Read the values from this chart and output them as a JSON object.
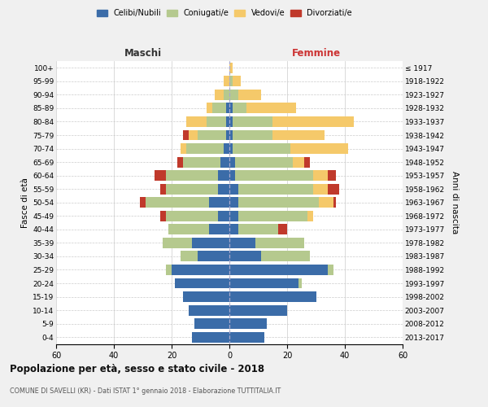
{
  "age_groups": [
    "0-4",
    "5-9",
    "10-14",
    "15-19",
    "20-24",
    "25-29",
    "30-34",
    "35-39",
    "40-44",
    "45-49",
    "50-54",
    "55-59",
    "60-64",
    "65-69",
    "70-74",
    "75-79",
    "80-84",
    "85-89",
    "90-94",
    "95-99",
    "100+"
  ],
  "birth_years": [
    "2013-2017",
    "2008-2012",
    "2003-2007",
    "1998-2002",
    "1993-1997",
    "1988-1992",
    "1983-1987",
    "1978-1982",
    "1973-1977",
    "1968-1972",
    "1963-1967",
    "1958-1962",
    "1953-1957",
    "1948-1952",
    "1943-1947",
    "1938-1942",
    "1933-1937",
    "1928-1932",
    "1923-1927",
    "1918-1922",
    "≤ 1917"
  ],
  "colors": {
    "celibe": "#3b6ca8",
    "coniugato": "#b5c98e",
    "vedovo": "#f5c96a",
    "divorziato": "#c0392b"
  },
  "males": {
    "celibe": [
      13,
      12,
      14,
      16,
      19,
      20,
      11,
      13,
      7,
      4,
      7,
      4,
      4,
      3,
      2,
      1,
      1,
      1,
      0,
      0,
      0
    ],
    "coniugato": [
      0,
      0,
      0,
      0,
      0,
      2,
      6,
      10,
      14,
      18,
      22,
      18,
      18,
      13,
      13,
      10,
      7,
      5,
      2,
      0,
      0
    ],
    "vedovo": [
      0,
      0,
      0,
      0,
      0,
      0,
      0,
      0,
      0,
      0,
      0,
      0,
      0,
      0,
      2,
      3,
      7,
      2,
      3,
      2,
      0
    ],
    "divorziato": [
      0,
      0,
      0,
      0,
      0,
      0,
      0,
      0,
      0,
      2,
      2,
      2,
      4,
      2,
      0,
      2,
      0,
      0,
      0,
      0,
      0
    ]
  },
  "females": {
    "nubile": [
      12,
      13,
      20,
      30,
      24,
      34,
      11,
      9,
      3,
      3,
      3,
      3,
      2,
      2,
      1,
      1,
      1,
      1,
      0,
      0,
      0
    ],
    "coniugata": [
      0,
      0,
      0,
      0,
      1,
      2,
      17,
      17,
      14,
      24,
      28,
      26,
      27,
      20,
      20,
      14,
      14,
      5,
      3,
      1,
      0
    ],
    "vedova": [
      0,
      0,
      0,
      0,
      0,
      0,
      0,
      0,
      0,
      2,
      5,
      5,
      5,
      4,
      20,
      18,
      28,
      17,
      8,
      3,
      1
    ],
    "divorziata": [
      0,
      0,
      0,
      0,
      0,
      0,
      0,
      0,
      3,
      0,
      1,
      4,
      3,
      2,
      0,
      0,
      0,
      0,
      0,
      0,
      0
    ]
  },
  "xlim": 60,
  "title": "Popolazione per età, sesso e stato civile - 2018",
  "subtitle": "COMUNE DI SAVELLI (KR) - Dati ISTAT 1° gennaio 2018 - Elaborazione TUTTITALIA.IT",
  "xlabel_left": "Maschi",
  "xlabel_right": "Femmine",
  "ylabel_left": "Fasce di età",
  "ylabel_right": "Anni di nascita",
  "bg_color": "#f0f0f0",
  "plot_bg": "#ffffff",
  "grid_color": "#cccccc"
}
